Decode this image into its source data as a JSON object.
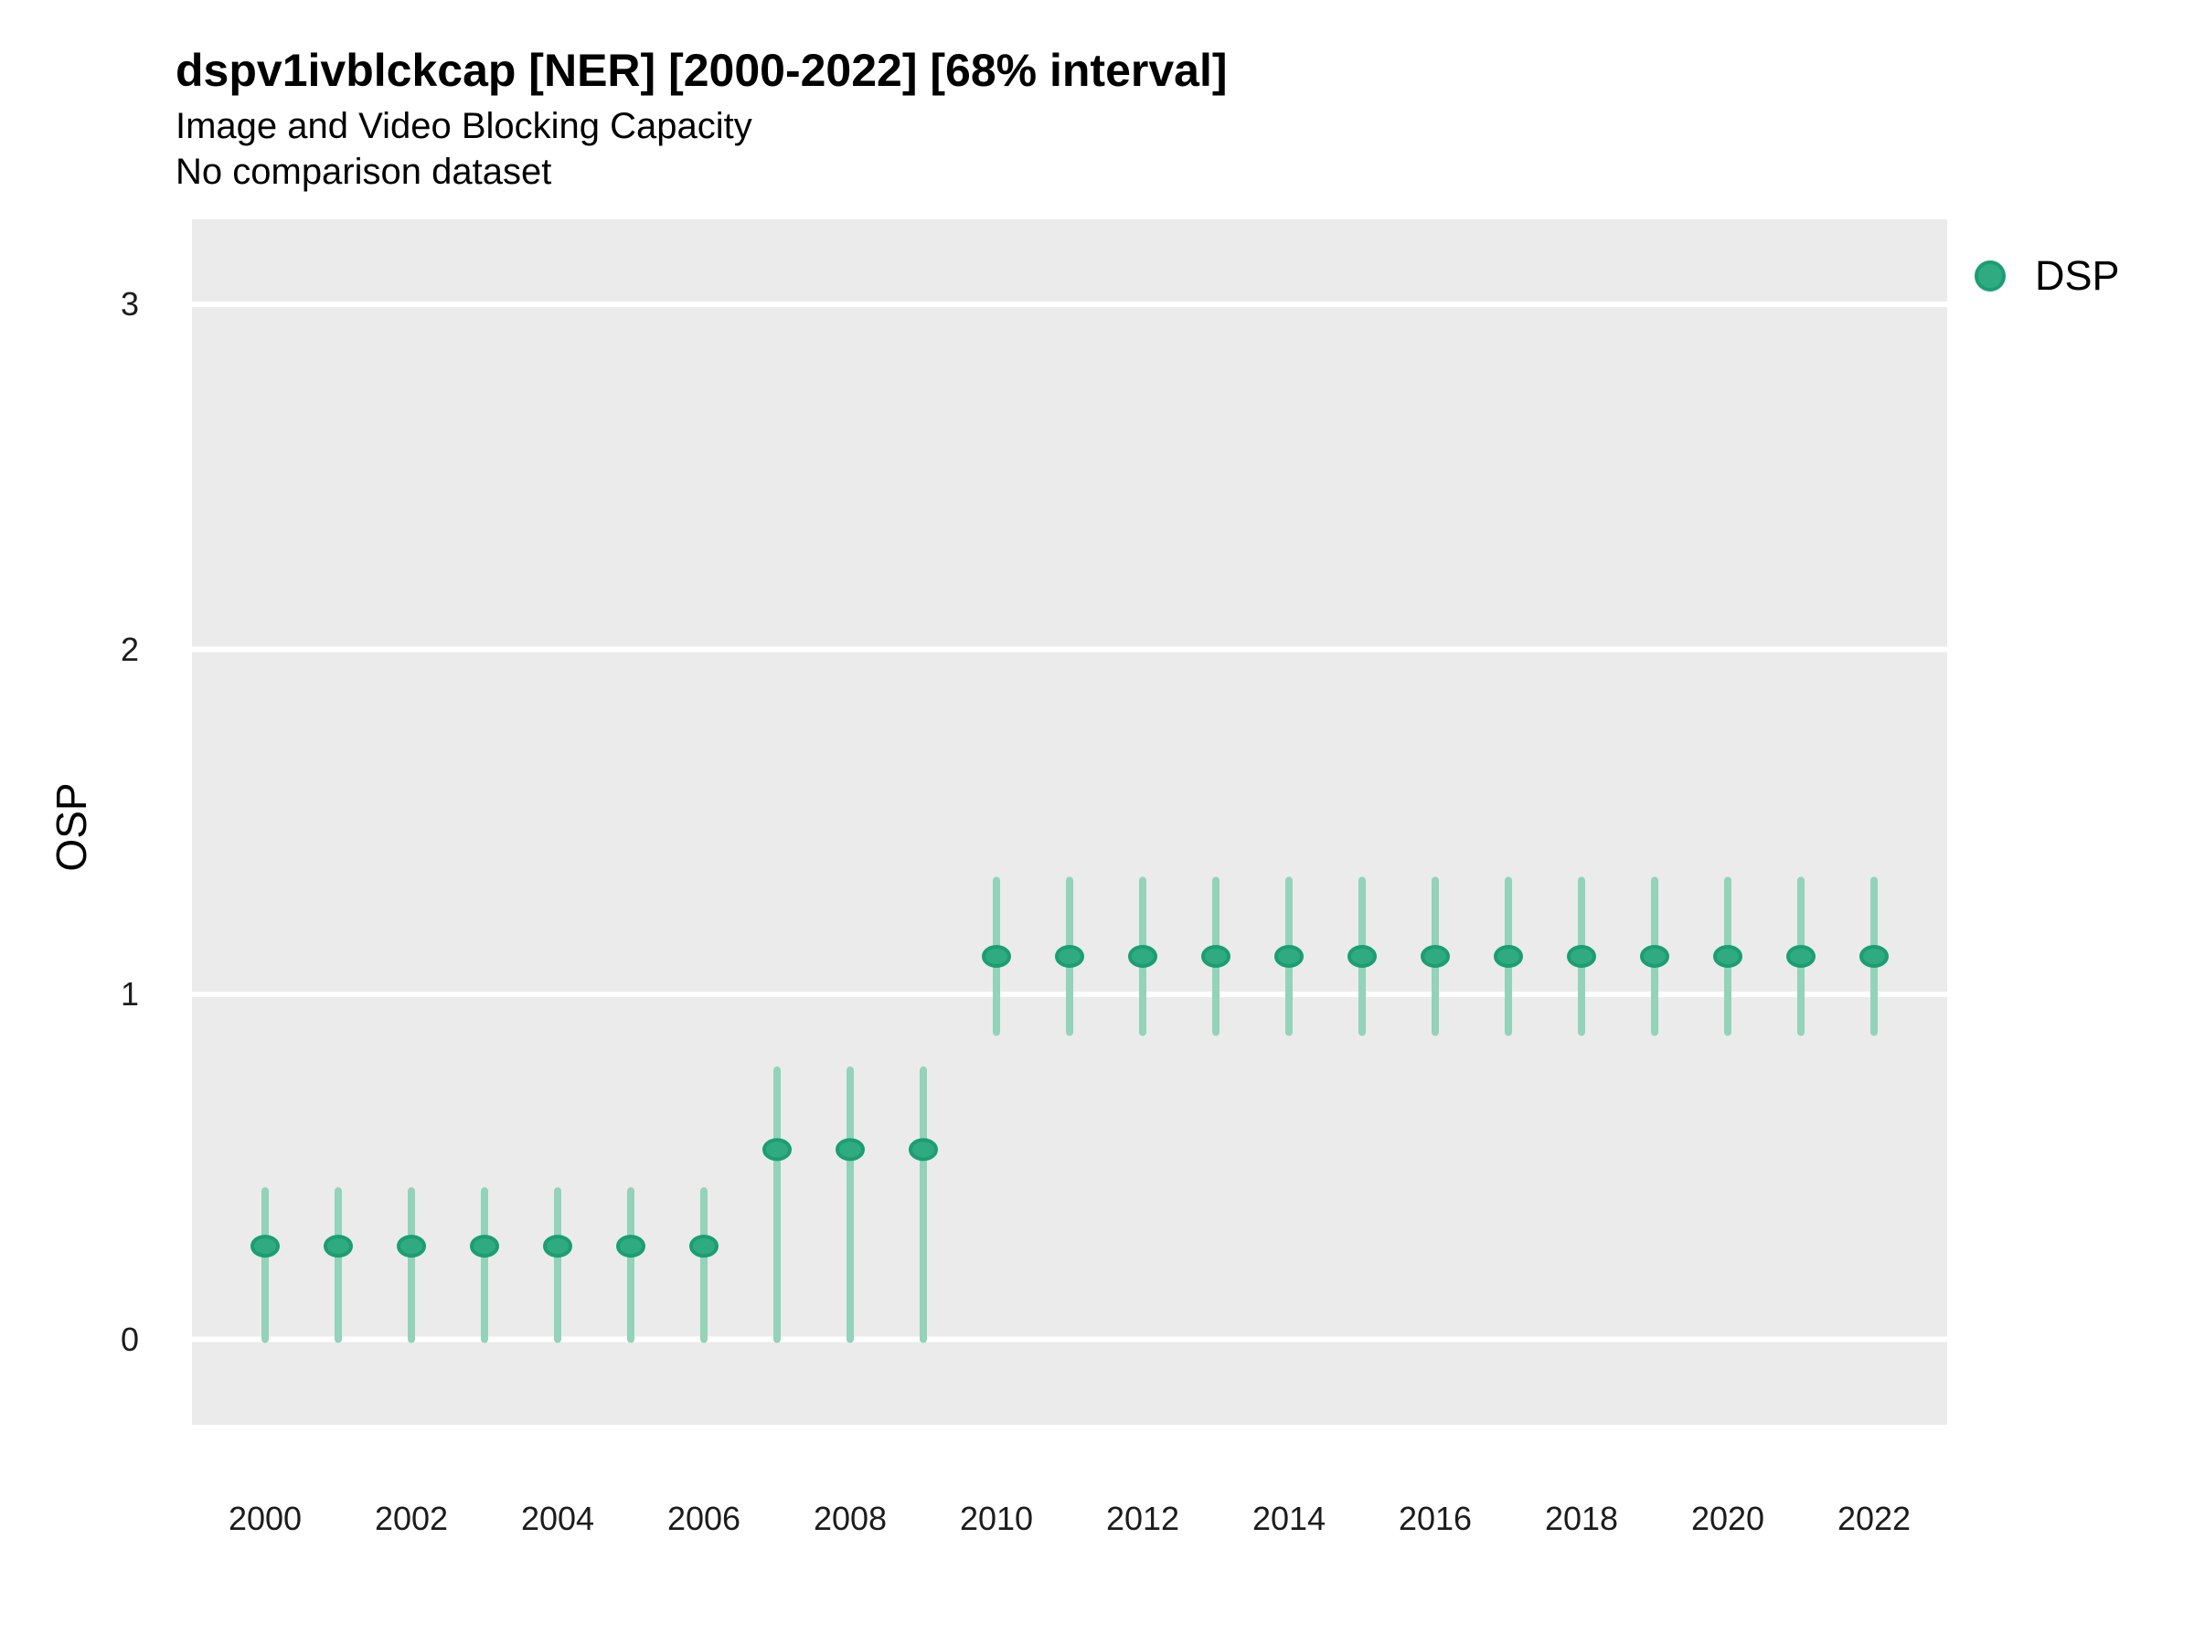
{
  "header": {
    "title": "dspv1ivblckcap [NER] [2000-2022] [68% interval]",
    "subtitle": "Image and Video Blocking Capacity",
    "note": "No comparison dataset"
  },
  "axes": {
    "y_label": "OSP",
    "y_ticks": [
      0,
      1,
      2,
      3
    ],
    "x_ticks": [
      2000,
      2002,
      2004,
      2006,
      2008,
      2010,
      2012,
      2014,
      2016,
      2018,
      2020,
      2022
    ]
  },
  "legend": {
    "label": "DSP"
  },
  "colors": {
    "point_fill": "#2faa81",
    "point_stroke": "#1b9e72",
    "interval_bar": "#92d3b9",
    "panel_background": "#ebebeb",
    "gridline": "#ffffff",
    "tick_text": "#1c1c1c"
  },
  "chart_data": {
    "type": "scatter",
    "subtype": "pointrange",
    "title": "dspv1ivblckcap [NER] [2000-2022] [68% interval]",
    "subtitle": "Image and Video Blocking Capacity",
    "note": "No comparison dataset",
    "interval": "68%",
    "xlabel": "",
    "ylabel": "OSP",
    "xlim": [
      1999,
      2023
    ],
    "ylim": [
      -0.25,
      3.25
    ],
    "grid": "horizontal-white-on-grey",
    "legend_position": "right",
    "series": [
      {
        "name": "DSP",
        "x": [
          2000,
          2001,
          2002,
          2003,
          2004,
          2005,
          2006,
          2007,
          2008,
          2009,
          2010,
          2011,
          2012,
          2013,
          2014,
          2015,
          2016,
          2017,
          2018,
          2019,
          2020,
          2021,
          2022
        ],
        "mid": [
          0.27,
          0.27,
          0.27,
          0.27,
          0.27,
          0.27,
          0.27,
          0.55,
          0.55,
          0.55,
          1.11,
          1.11,
          1.11,
          1.11,
          1.11,
          1.11,
          1.11,
          1.11,
          1.11,
          1.11,
          1.11,
          1.11,
          1.11
        ],
        "lo": [
          0.0,
          0.0,
          0.0,
          0.0,
          0.0,
          0.0,
          0.0,
          0.0,
          0.0,
          0.0,
          0.89,
          0.89,
          0.89,
          0.89,
          0.89,
          0.89,
          0.89,
          0.89,
          0.89,
          0.89,
          0.89,
          0.89,
          0.89
        ],
        "hi": [
          0.43,
          0.43,
          0.43,
          0.43,
          0.43,
          0.43,
          0.43,
          0.78,
          0.78,
          0.78,
          1.33,
          1.33,
          1.33,
          1.33,
          1.33,
          1.33,
          1.33,
          1.33,
          1.33,
          1.33,
          1.33,
          1.33,
          1.33
        ]
      }
    ]
  }
}
